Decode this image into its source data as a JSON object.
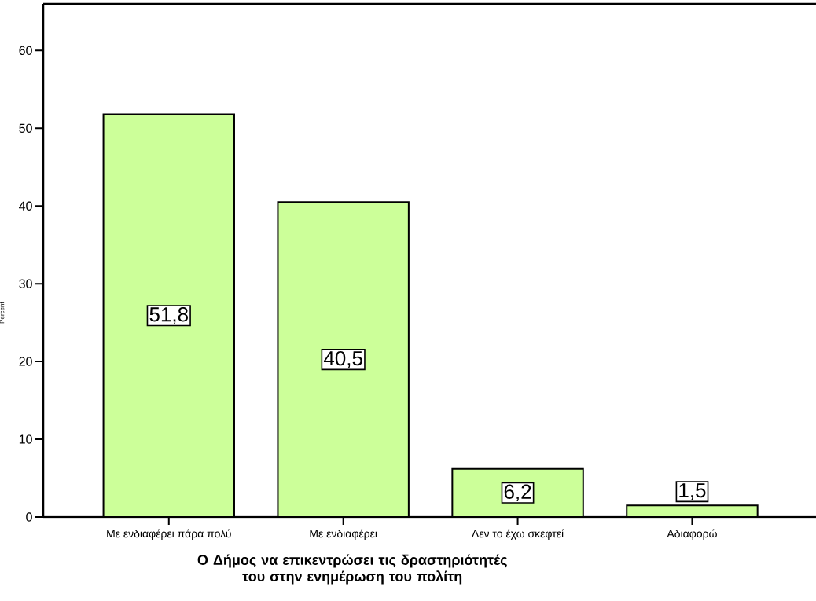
{
  "chart_data": {
    "type": "bar",
    "xlabel": "Ο Δήμος να επικεντρώσει τις δραστηριότητές του στην ενημέρωση του πολίτη",
    "ylabel": "Percent",
    "categories": [
      "Με ενδιαφέρει πάρα πολύ",
      "Με ενδιαφέρει",
      "Δεν το έχω σκεφτεί",
      "Αδιαφορώ"
    ],
    "values": [
      51.8,
      40.5,
      6.2,
      1.5
    ],
    "value_labels": [
      "51,8",
      "40,5",
      "6,2",
      "1,5"
    ],
    "color": "#ccff99",
    "ylim": [
      0,
      66
    ],
    "yticks": [
      0,
      10,
      20,
      30,
      40,
      50,
      60
    ],
    "grid": false
  }
}
